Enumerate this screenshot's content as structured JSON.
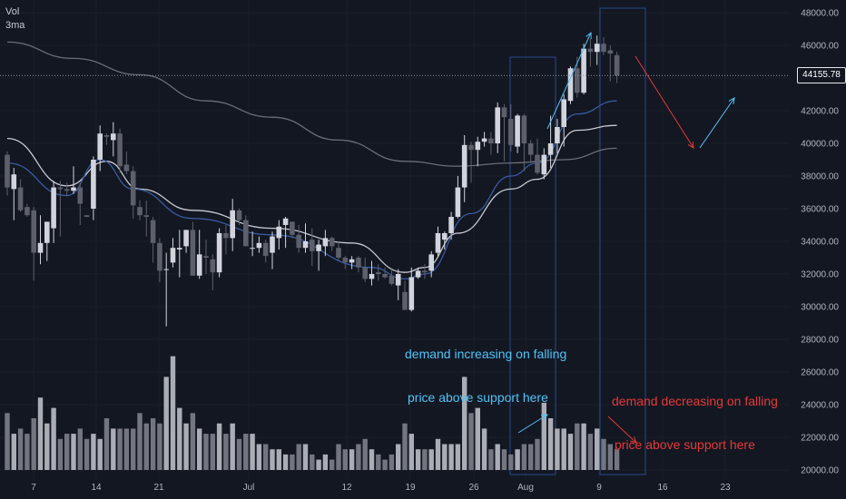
{
  "indicators": {
    "volume_label": "Vol",
    "ma_label": "3ma"
  },
  "last_price_label": "44155.78",
  "annotations": [
    {
      "lines": [
        "demand increasing on falling",
        "price above support here"
      ],
      "color": "#4fc3f7"
    },
    {
      "lines": [
        "demand decreasing on falling",
        "price above support here"
      ],
      "color": "#e53935"
    }
  ],
  "colors": {
    "background": "#131722",
    "up_candle": "#d1d4dc",
    "down_candle": "#5d606b",
    "ma_fast": "#3a5ba0",
    "ma_mid": "#c8cad0",
    "ma_slow": "#6b6e78",
    "annotation_blue": "#4fc3f7",
    "annotation_red": "#e53935"
  },
  "chart_data": {
    "type": "candlestick",
    "y_axis_ticks": [
      "48000.00",
      "46000.00",
      "44000.00",
      "42000.00",
      "40000.00",
      "38000.00",
      "36000.00",
      "34000.00",
      "32000.00",
      "30000.00",
      "28000.00",
      "26000.00",
      "24000.00",
      "22000.00",
      "20000.00"
    ],
    "x_axis_ticks": [
      "7",
      "14",
      "21",
      "Jul",
      "12",
      "19",
      "26",
      "Aug",
      "9",
      "16",
      "23"
    ],
    "ylim": [
      20000,
      48000
    ],
    "last_price": 44155.78,
    "candles": [
      {
        "o": 39300,
        "h": 39500,
        "l": 36800,
        "c": 37300
      },
      {
        "o": 37200,
        "h": 38500,
        "l": 35300,
        "c": 38100
      },
      {
        "o": 37300,
        "h": 37800,
        "l": 35800,
        "c": 35900
      },
      {
        "o": 36100,
        "h": 36300,
        "l": 35500,
        "c": 35600
      },
      {
        "o": 35900,
        "h": 36100,
        "l": 31600,
        "c": 33300
      },
      {
        "o": 33300,
        "h": 35600,
        "l": 32600,
        "c": 33900
      },
      {
        "o": 33900,
        "h": 35200,
        "l": 32800,
        "c": 35200
      },
      {
        "o": 34800,
        "h": 37700,
        "l": 33900,
        "c": 37300
      },
      {
        "o": 37300,
        "h": 37700,
        "l": 34300,
        "c": 37200
      },
      {
        "o": 37200,
        "h": 37600,
        "l": 36800,
        "c": 37100
      },
      {
        "o": 37100,
        "h": 38600,
        "l": 36900,
        "c": 37300
      },
      {
        "o": 37300,
        "h": 37600,
        "l": 35000,
        "c": 36300
      },
      {
        "o": 35600,
        "h": 35600,
        "l": 35500,
        "c": 35500
      },
      {
        "o": 36000,
        "h": 39200,
        "l": 35300,
        "c": 39000
      },
      {
        "o": 39000,
        "h": 41100,
        "l": 38300,
        "c": 40600
      },
      {
        "o": 40500,
        "h": 40600,
        "l": 39900,
        "c": 40400
      },
      {
        "o": 40200,
        "h": 41300,
        "l": 39200,
        "c": 40600
      },
      {
        "o": 40600,
        "h": 40900,
        "l": 38200,
        "c": 38600
      },
      {
        "o": 38700,
        "h": 39500,
        "l": 38100,
        "c": 38300
      },
      {
        "o": 38300,
        "h": 38600,
        "l": 35400,
        "c": 36200
      },
      {
        "o": 36100,
        "h": 36500,
        "l": 35300,
        "c": 35600
      },
      {
        "o": 35600,
        "h": 36500,
        "l": 34300,
        "c": 35500
      },
      {
        "o": 35300,
        "h": 35500,
        "l": 32700,
        "c": 33900
      },
      {
        "o": 33900,
        "h": 34200,
        "l": 31500,
        "c": 32200
      },
      {
        "o": 32300,
        "h": 33300,
        "l": 28800,
        "c": 32300
      },
      {
        "o": 32700,
        "h": 34200,
        "l": 32400,
        "c": 33600
      },
      {
        "o": 33500,
        "h": 34700,
        "l": 31800,
        "c": 33600
      },
      {
        "o": 33700,
        "h": 34700,
        "l": 33300,
        "c": 34700
      },
      {
        "o": 34700,
        "h": 35200,
        "l": 31900,
        "c": 31900
      },
      {
        "o": 31900,
        "h": 34700,
        "l": 31700,
        "c": 33200
      },
      {
        "o": 33100,
        "h": 34100,
        "l": 32000,
        "c": 33000
      },
      {
        "o": 32900,
        "h": 33200,
        "l": 31000,
        "c": 32100
      },
      {
        "o": 32100,
        "h": 34800,
        "l": 31800,
        "c": 34500
      },
      {
        "o": 34500,
        "h": 35000,
        "l": 33200,
        "c": 34200
      },
      {
        "o": 34200,
        "h": 36600,
        "l": 33400,
        "c": 35900
      },
      {
        "o": 35900,
        "h": 36000,
        "l": 35000,
        "c": 35300
      },
      {
        "o": 35300,
        "h": 35600,
        "l": 33700,
        "c": 33700
      },
      {
        "o": 33600,
        "h": 34600,
        "l": 33100,
        "c": 33600
      },
      {
        "o": 33600,
        "h": 34300,
        "l": 33300,
        "c": 33900
      },
      {
        "o": 33900,
        "h": 34100,
        "l": 32700,
        "c": 33100
      },
      {
        "o": 33300,
        "h": 34600,
        "l": 32300,
        "c": 34300
      },
      {
        "o": 34200,
        "h": 35300,
        "l": 33500,
        "c": 34900
      },
      {
        "o": 35000,
        "h": 35500,
        "l": 33600,
        "c": 35400
      },
      {
        "o": 35200,
        "h": 35200,
        "l": 34200,
        "c": 34400
      },
      {
        "o": 34400,
        "h": 35000,
        "l": 33300,
        "c": 33600
      },
      {
        "o": 33600,
        "h": 35100,
        "l": 33300,
        "c": 34000
      },
      {
        "o": 34100,
        "h": 34800,
        "l": 32500,
        "c": 33400
      },
      {
        "o": 33400,
        "h": 34100,
        "l": 32200,
        "c": 33800
      },
      {
        "o": 33700,
        "h": 34700,
        "l": 33100,
        "c": 34200
      },
      {
        "o": 34200,
        "h": 34300,
        "l": 33400,
        "c": 33700
      },
      {
        "o": 33600,
        "h": 34000,
        "l": 32800,
        "c": 33000
      },
      {
        "o": 33000,
        "h": 33100,
        "l": 32300,
        "c": 32700
      },
      {
        "o": 32700,
        "h": 33100,
        "l": 32300,
        "c": 32900
      },
      {
        "o": 33000,
        "h": 33100,
        "l": 32100,
        "c": 32400
      },
      {
        "o": 32400,
        "h": 33000,
        "l": 31500,
        "c": 31700
      },
      {
        "o": 31700,
        "h": 32800,
        "l": 31300,
        "c": 32000
      },
      {
        "o": 32100,
        "h": 32600,
        "l": 31600,
        "c": 32000
      },
      {
        "o": 32000,
        "h": 32400,
        "l": 31700,
        "c": 31800
      },
      {
        "o": 31900,
        "h": 32300,
        "l": 31300,
        "c": 31400
      },
      {
        "o": 31300,
        "h": 32300,
        "l": 30400,
        "c": 32000
      },
      {
        "o": 30900,
        "h": 31600,
        "l": 29800,
        "c": 29800
      },
      {
        "o": 29800,
        "h": 32400,
        "l": 29700,
        "c": 31800
      },
      {
        "o": 31800,
        "h": 32400,
        "l": 31700,
        "c": 32200
      },
      {
        "o": 32200,
        "h": 32600,
        "l": 31700,
        "c": 32100
      },
      {
        "o": 32200,
        "h": 33400,
        "l": 31800,
        "c": 33200
      },
      {
        "o": 33300,
        "h": 34900,
        "l": 33100,
        "c": 34500
      },
      {
        "o": 34100,
        "h": 34600,
        "l": 33500,
        "c": 34500
      },
      {
        "o": 34500,
        "h": 35800,
        "l": 34100,
        "c": 35500
      },
      {
        "o": 35500,
        "h": 38000,
        "l": 35400,
        "c": 37300
      },
      {
        "o": 37300,
        "h": 40500,
        "l": 36400,
        "c": 39900
      },
      {
        "o": 39900,
        "h": 40100,
        "l": 37600,
        "c": 39600
      },
      {
        "o": 39600,
        "h": 40400,
        "l": 38600,
        "c": 40100
      },
      {
        "o": 40100,
        "h": 40700,
        "l": 39800,
        "c": 40300
      },
      {
        "o": 40300,
        "h": 40700,
        "l": 39300,
        "c": 40000
      },
      {
        "o": 40000,
        "h": 42500,
        "l": 39400,
        "c": 42200
      },
      {
        "o": 42200,
        "h": 42400,
        "l": 38900,
        "c": 41600
      },
      {
        "o": 41500,
        "h": 42400,
        "l": 39500,
        "c": 39900
      },
      {
        "o": 39800,
        "h": 41800,
        "l": 39400,
        "c": 41700
      },
      {
        "o": 41700,
        "h": 41800,
        "l": 38300,
        "c": 40000
      },
      {
        "o": 40000,
        "h": 40200,
        "l": 38800,
        "c": 39300
      },
      {
        "o": 39300,
        "h": 40300,
        "l": 38100,
        "c": 38200
      },
      {
        "o": 38100,
        "h": 39700,
        "l": 37800,
        "c": 39300
      },
      {
        "o": 39300,
        "h": 41700,
        "l": 38500,
        "c": 40000
      },
      {
        "o": 40000,
        "h": 41500,
        "l": 39400,
        "c": 41000
      },
      {
        "o": 41000,
        "h": 43000,
        "l": 39800,
        "c": 42700
      },
      {
        "o": 42600,
        "h": 44700,
        "l": 42400,
        "c": 44600
      },
      {
        "o": 44600,
        "h": 45300,
        "l": 42800,
        "c": 43100
      },
      {
        "o": 43100,
        "h": 46100,
        "l": 43000,
        "c": 45800
      },
      {
        "o": 45800,
        "h": 46400,
        "l": 44700,
        "c": 45600
      },
      {
        "o": 45600,
        "h": 46600,
        "l": 44800,
        "c": 46100
      },
      {
        "o": 46100,
        "h": 46500,
        "l": 45400,
        "c": 45600
      },
      {
        "o": 45700,
        "h": 46000,
        "l": 43800,
        "c": 45500
      },
      {
        "o": 45400,
        "h": 45600,
        "l": 43700,
        "c": 44156
      }
    ],
    "volume": [
      11,
      7,
      8,
      7,
      10,
      14,
      9,
      12,
      6,
      7,
      7,
      8,
      6,
      7,
      6,
      10,
      8,
      8,
      8,
      8,
      11,
      9,
      10,
      9,
      18,
      22,
      12,
      9,
      11,
      8,
      7,
      7,
      9,
      7,
      9,
      6,
      7,
      7,
      5,
      5,
      4,
      4,
      3,
      3,
      5,
      5,
      3,
      2,
      3,
      2,
      5,
      4,
      4,
      5,
      6,
      4,
      3,
      2,
      3,
      5,
      9,
      7,
      4,
      4,
      4,
      6,
      5,
      5,
      5,
      18,
      11,
      12,
      8,
      4,
      5,
      4,
      3,
      4,
      5,
      5,
      6,
      13,
      10,
      8,
      8,
      7,
      9,
      9,
      7,
      8,
      6,
      5,
      4
    ],
    "ma_fast": [
      {
        "i": 0,
        "v": 38800
      },
      {
        "i": 9,
        "v": 36800
      },
      {
        "i": 14,
        "v": 39000
      },
      {
        "i": 19,
        "v": 37200
      },
      {
        "i": 28,
        "v": 35400
      },
      {
        "i": 40,
        "v": 34400
      },
      {
        "i": 55,
        "v": 32400
      },
      {
        "i": 60,
        "v": 31700
      },
      {
        "i": 63,
        "v": 32000
      },
      {
        "i": 70,
        "v": 35700
      },
      {
        "i": 76,
        "v": 38000
      },
      {
        "i": 80,
        "v": 38800
      },
      {
        "i": 86,
        "v": 41800
      },
      {
        "i": 92,
        "v": 42600
      }
    ],
    "ma_mid": [
      {
        "i": 0,
        "v": 40300
      },
      {
        "i": 9,
        "v": 37400
      },
      {
        "i": 15,
        "v": 38900
      },
      {
        "i": 20,
        "v": 37200
      },
      {
        "i": 28,
        "v": 35900
      },
      {
        "i": 40,
        "v": 34800
      },
      {
        "i": 52,
        "v": 33900
      },
      {
        "i": 60,
        "v": 32100
      },
      {
        "i": 63,
        "v": 32400
      },
      {
        "i": 68,
        "v": 34500
      },
      {
        "i": 76,
        "v": 37200
      },
      {
        "i": 80,
        "v": 37800
      },
      {
        "i": 86,
        "v": 40800
      },
      {
        "i": 92,
        "v": 41100
      }
    ],
    "ma_slow": [
      {
        "i": 0,
        "v": 46200
      },
      {
        "i": 10,
        "v": 45200
      },
      {
        "i": 20,
        "v": 44200
      },
      {
        "i": 30,
        "v": 42600
      },
      {
        "i": 40,
        "v": 41600
      },
      {
        "i": 50,
        "v": 40200
      },
      {
        "i": 60,
        "v": 38900
      },
      {
        "i": 68,
        "v": 38600
      },
      {
        "i": 76,
        "v": 38800
      },
      {
        "i": 84,
        "v": 39000
      },
      {
        "i": 92,
        "v": 39700
      }
    ]
  }
}
